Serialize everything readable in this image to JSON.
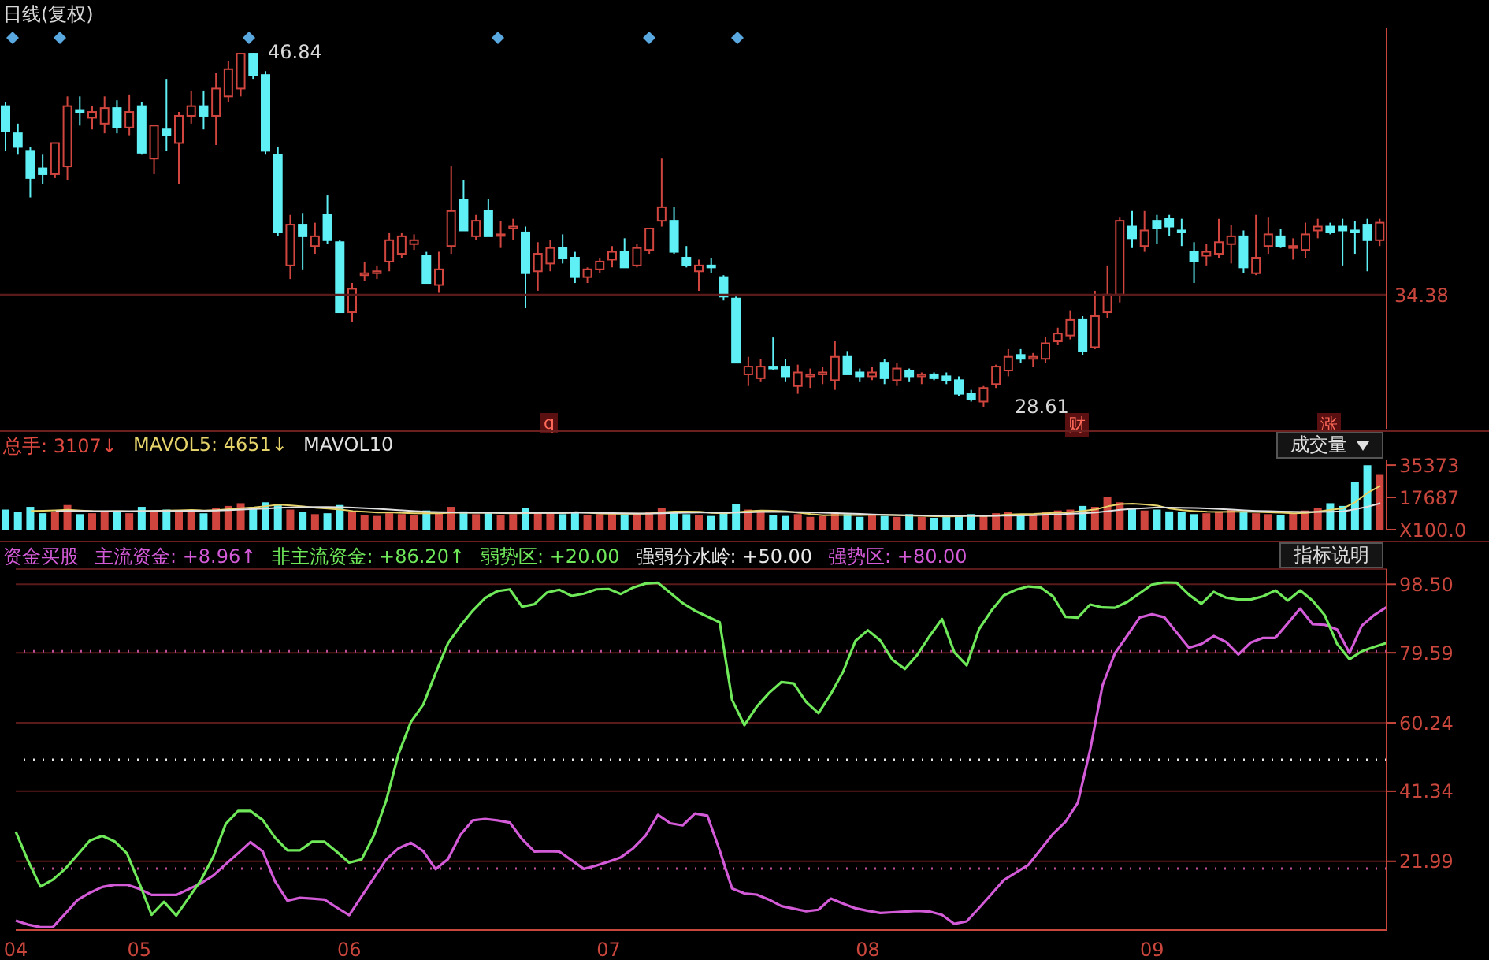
{
  "chart_data": [
    {
      "type": "candlestick",
      "title": "日线(复权)",
      "categories": [
        null,
        null,
        null,
        null,
        null,
        null,
        null,
        null,
        null,
        null,
        null,
        null,
        null,
        null,
        null,
        null,
        null,
        null,
        null,
        null,
        null,
        null,
        null,
        null,
        null,
        null,
        null,
        null,
        null,
        null,
        null,
        null,
        null,
        null,
        null,
        null,
        null,
        null,
        null,
        null,
        null,
        null,
        null,
        null,
        null,
        null,
        null,
        null,
        null,
        null,
        null,
        null,
        null,
        null,
        null,
        null,
        null,
        null,
        null,
        null,
        null,
        null,
        null,
        null,
        null,
        null,
        null,
        null,
        null,
        null,
        null,
        null,
        null,
        null,
        null,
        null,
        null,
        null,
        null,
        null,
        null,
        null,
        null,
        null,
        null,
        null,
        null,
        null,
        null,
        null,
        null,
        null,
        null,
        null,
        null,
        null,
        null,
        null,
        null,
        null,
        null,
        null,
        null,
        null,
        null,
        null,
        null,
        null,
        null,
        null,
        null,
        null
      ],
      "ohlc": [
        [
          44.1,
          44.3,
          41.8,
          42.8
        ],
        [
          42.7,
          43.2,
          41.6,
          42.0
        ],
        [
          41.8,
          42.0,
          39.4,
          40.4
        ],
        [
          40.9,
          41.6,
          40.1,
          40.6
        ],
        [
          40.6,
          42.2,
          40.4,
          42.2
        ],
        [
          41.0,
          44.6,
          40.3,
          44.1
        ],
        [
          43.9,
          44.6,
          43.1,
          43.8
        ],
        [
          43.5,
          44.1,
          42.9,
          43.8
        ],
        [
          43.2,
          44.6,
          42.7,
          44.0
        ],
        [
          44.0,
          44.4,
          42.7,
          43.0
        ],
        [
          43.0,
          44.7,
          42.6,
          43.8
        ],
        [
          44.1,
          44.3,
          41.6,
          41.7
        ],
        [
          41.4,
          43.1,
          40.6,
          43.1
        ],
        [
          42.9,
          45.5,
          41.8,
          42.6
        ],
        [
          42.2,
          43.8,
          40.1,
          43.6
        ],
        [
          43.6,
          44.9,
          43.2,
          44.1
        ],
        [
          44.1,
          44.9,
          42.9,
          43.6
        ],
        [
          43.6,
          45.8,
          42.1,
          45.0
        ],
        [
          44.6,
          46.4,
          44.3,
          46.0
        ],
        [
          45.0,
          46.8,
          44.6,
          46.8
        ],
        [
          46.8,
          46.84,
          45.5,
          45.7
        ],
        [
          45.7,
          45.9,
          41.6,
          41.8
        ],
        [
          41.6,
          42.0,
          37.4,
          37.6
        ],
        [
          35.9,
          38.5,
          35.2,
          38.0
        ],
        [
          38.0,
          38.6,
          35.7,
          37.4
        ],
        [
          36.9,
          38.1,
          36.5,
          37.4
        ],
        [
          38.5,
          39.5,
          37.0,
          37.2
        ],
        [
          37.1,
          37.2,
          33.5,
          33.5
        ],
        [
          33.5,
          35.0,
          33.0,
          34.7
        ],
        [
          35.4,
          36.1,
          35.1,
          35.5
        ],
        [
          35.5,
          35.9,
          35.2,
          35.6
        ],
        [
          36.1,
          37.6,
          35.6,
          37.2
        ],
        [
          36.5,
          37.6,
          36.3,
          37.4
        ],
        [
          37.0,
          37.5,
          36.7,
          37.2
        ],
        [
          36.4,
          36.6,
          35.0,
          35.0
        ],
        [
          34.9,
          36.6,
          34.5,
          35.7
        ],
        [
          36.9,
          41.0,
          36.5,
          38.7
        ],
        [
          39.3,
          40.3,
          37.7,
          37.7
        ],
        [
          37.4,
          38.5,
          37.2,
          38.2
        ],
        [
          38.7,
          39.3,
          37.4,
          37.4
        ],
        [
          37.5,
          38.2,
          36.8,
          37.5
        ],
        [
          37.8,
          38.3,
          37.2,
          37.9
        ],
        [
          37.6,
          37.9,
          33.7,
          35.5
        ],
        [
          35.6,
          37.1,
          34.6,
          36.5
        ],
        [
          36.0,
          37.2,
          35.6,
          36.8
        ],
        [
          36.8,
          37.5,
          36.0,
          36.3
        ],
        [
          36.3,
          36.6,
          35.0,
          35.3
        ],
        [
          35.3,
          35.8,
          35.0,
          35.7
        ],
        [
          35.7,
          36.3,
          35.5,
          36.1
        ],
        [
          36.2,
          36.9,
          35.8,
          36.6
        ],
        [
          36.6,
          37.3,
          35.8,
          35.8
        ],
        [
          35.9,
          37.0,
          35.8,
          36.8
        ],
        [
          36.7,
          37.8,
          36.5,
          37.8
        ],
        [
          38.2,
          41.4,
          37.9,
          38.9
        ],
        [
          38.2,
          38.9,
          36.5,
          36.6
        ],
        [
          36.3,
          36.9,
          35.8,
          35.9
        ],
        [
          35.6,
          36.2,
          34.6,
          35.9
        ],
        [
          35.9,
          36.3,
          35.5,
          35.8
        ],
        [
          35.3,
          35.4,
          34.1,
          34.3
        ],
        [
          34.2,
          34.3,
          30.9,
          30.9
        ],
        [
          30.3,
          31.2,
          29.7,
          30.7
        ],
        [
          30.1,
          31.1,
          29.9,
          30.7
        ],
        [
          30.7,
          32.2,
          30.5,
          30.6
        ],
        [
          30.7,
          31.1,
          29.9,
          30.2
        ],
        [
          29.7,
          30.8,
          29.3,
          30.4
        ],
        [
          30.2,
          30.6,
          29.6,
          30.3
        ],
        [
          30.3,
          30.7,
          29.8,
          30.4
        ],
        [
          30.0,
          32.0,
          29.5,
          31.2
        ],
        [
          31.2,
          31.5,
          30.3,
          30.3
        ],
        [
          30.4,
          30.6,
          29.9,
          30.2
        ],
        [
          30.2,
          30.7,
          30.0,
          30.4
        ],
        [
          30.9,
          31.1,
          29.8,
          30.1
        ],
        [
          30.0,
          30.9,
          29.7,
          30.6
        ],
        [
          30.5,
          30.6,
          29.9,
          30.2
        ],
        [
          30.2,
          30.4,
          29.8,
          30.3
        ],
        [
          30.3,
          30.4,
          30.0,
          30.1
        ],
        [
          30.2,
          30.4,
          29.8,
          30.0
        ],
        [
          30.0,
          30.2,
          29.2,
          29.3
        ],
        [
          29.3,
          29.5,
          28.9,
          29.0
        ],
        [
          28.9,
          29.7,
          28.61,
          29.6
        ],
        [
          29.8,
          30.8,
          29.6,
          30.7
        ],
        [
          30.5,
          31.6,
          30.2,
          31.2
        ],
        [
          31.3,
          31.6,
          30.9,
          31.1
        ],
        [
          31.1,
          31.4,
          30.7,
          31.2
        ],
        [
          31.1,
          32.2,
          30.9,
          31.9
        ],
        [
          32.0,
          32.7,
          31.8,
          32.4
        ],
        [
          32.3,
          33.6,
          32.1,
          33.1
        ],
        [
          33.1,
          33.3,
          31.3,
          31.5
        ],
        [
          31.7,
          34.6,
          31.6,
          33.3
        ],
        [
          33.5,
          35.9,
          33.2,
          34.4
        ],
        [
          34.4,
          38.4,
          34.0,
          38.2
        ],
        [
          37.9,
          38.7,
          36.8,
          37.3
        ],
        [
          36.9,
          38.7,
          36.6,
          37.7
        ],
        [
          38.2,
          38.5,
          37.0,
          37.8
        ],
        [
          38.3,
          38.5,
          37.4,
          37.9
        ],
        [
          37.7,
          38.3,
          36.9,
          37.6
        ],
        [
          36.6,
          37.1,
          35.0,
          36.1
        ],
        [
          36.4,
          37.0,
          35.9,
          36.6
        ],
        [
          36.5,
          38.3,
          36.3,
          37.1
        ],
        [
          37.0,
          38.0,
          36.0,
          37.4
        ],
        [
          37.4,
          37.7,
          35.5,
          35.8
        ],
        [
          35.5,
          38.5,
          35.4,
          36.3
        ],
        [
          36.9,
          38.4,
          36.5,
          37.5
        ],
        [
          37.4,
          37.8,
          36.8,
          36.9
        ],
        [
          36.8,
          37.3,
          36.2,
          36.9
        ],
        [
          36.7,
          38.1,
          36.3,
          37.5
        ],
        [
          37.7,
          38.3,
          37.3,
          37.9
        ],
        [
          37.9,
          38.1,
          37.5,
          37.6
        ],
        [
          37.9,
          38.3,
          35.9,
          37.7
        ],
        [
          37.7,
          38.2,
          36.5,
          37.6
        ],
        [
          38.0,
          38.3,
          35.6,
          37.2
        ],
        [
          37.2,
          38.3,
          36.9,
          38.1
        ]
      ],
      "colors": [
        "#5ff0f5",
        "#5ff0f5",
        "#5ff0f5",
        "#5ff0f5",
        "#d0453e",
        "#d0453e",
        "#5ff0f5",
        "#d0453e",
        "#d0453e",
        "#5ff0f5",
        "#d0453e",
        "#5ff0f5",
        "#d0453e",
        "#5ff0f5",
        "#d0453e",
        "#d0453e",
        "#5ff0f5",
        "#d0453e",
        "#d0453e",
        "#d0453e",
        "#5ff0f5",
        "#5ff0f5",
        "#5ff0f5",
        "#d0453e",
        "#5ff0f5",
        "#d0453e",
        "#5ff0f5",
        "#5ff0f5",
        "#d0453e",
        "#d0453e",
        "#d0453e",
        "#d0453e",
        "#d0453e",
        "#d0453e",
        "#5ff0f5",
        "#d0453e",
        "#d0453e",
        "#5ff0f5",
        "#d0453e",
        "#5ff0f5",
        "#d0453e",
        "#d0453e",
        "#5ff0f5",
        "#d0453e",
        "#d0453e",
        "#5ff0f5",
        "#5ff0f5",
        "#d0453e",
        "#d0453e",
        "#d0453e",
        "#5ff0f5",
        "#d0453e",
        "#d0453e",
        "#d0453e",
        "#5ff0f5",
        "#5ff0f5",
        "#d0453e",
        "#5ff0f5",
        "#5ff0f5",
        "#5ff0f5",
        "#d0453e",
        "#d0453e",
        "#5ff0f5",
        "#5ff0f5",
        "#d0453e",
        "#d0453e",
        "#d0453e",
        "#d0453e",
        "#5ff0f5",
        "#5ff0f5",
        "#d0453e",
        "#5ff0f5",
        "#d0453e",
        "#5ff0f5",
        "#d0453e",
        "#5ff0f5",
        "#5ff0f5",
        "#5ff0f5",
        "#5ff0f5",
        "#d0453e",
        "#d0453e",
        "#d0453e",
        "#5ff0f5",
        "#d0453e",
        "#d0453e",
        "#d0453e",
        "#d0453e",
        "#5ff0f5",
        "#d0453e",
        "#d0453e",
        "#d0453e",
        "#5ff0f5",
        "#d0453e",
        "#5ff0f5",
        "#5ff0f5",
        "#5ff0f5",
        "#5ff0f5",
        "#d0453e",
        "#d0453e",
        "#d0453e",
        "#5ff0f5",
        "#d0453e",
        "#d0453e",
        "#5ff0f5",
        "#d0453e",
        "#d0453e",
        "#d0453e",
        "#5ff0f5",
        "#5ff0f5",
        "#5ff0f5",
        "#5ff0f5",
        "#d0453e"
      ],
      "ylim": [
        27.5,
        48.1
      ],
      "ref_lines": [
        {
          "axis": "y",
          "value": 34.38,
          "label": "34.38",
          "color": "#5a1a1a"
        }
      ],
      "annotations": [
        "46.84",
        "28.61",
        "q",
        "财",
        "涨"
      ]
    },
    {
      "type": "bar",
      "categories": [
        null,
        null,
        null,
        null,
        null,
        null,
        null,
        null,
        null,
        null,
        null,
        null,
        null,
        null,
        null,
        null,
        null,
        null,
        null,
        null,
        null,
        null,
        null,
        null,
        null,
        null,
        null,
        null,
        null,
        null,
        null,
        null,
        null,
        null,
        null,
        null,
        null,
        null,
        null,
        null,
        null,
        null,
        null,
        null,
        null,
        null,
        null,
        null,
        null,
        null,
        null,
        null,
        null,
        null,
        null,
        null,
        null,
        null,
        null,
        null,
        null,
        null,
        null,
        null,
        null,
        null,
        null,
        null,
        null,
        null,
        null,
        null,
        null,
        null,
        null,
        null,
        null,
        null,
        null,
        null,
        null,
        null,
        null,
        null,
        null,
        null,
        null,
        null,
        null,
        null,
        null,
        null,
        null,
        null,
        null,
        null,
        null,
        null,
        null,
        null,
        null,
        null,
        null,
        null,
        null,
        null,
        null,
        null,
        null,
        null,
        null,
        null
      ],
      "series": [
        {
          "type": "bar",
          "values": [
            11000,
            9500,
            12500,
            9000,
            10000,
            13500,
            8500,
            9000,
            9500,
            10000,
            9000,
            12500,
            10500,
            11000,
            9500,
            10000,
            9000,
            12000,
            13000,
            14500,
            12000,
            15000,
            14000,
            11000,
            9500,
            8500,
            9000,
            13500,
            10000,
            8000,
            7500,
            9000,
            8500,
            8000,
            10500,
            9000,
            12500,
            10000,
            8500,
            9500,
            8000,
            8500,
            12000,
            9500,
            9000,
            8500,
            9500,
            8000,
            8500,
            9000,
            8500,
            9000,
            9500,
            12000,
            10000,
            8500,
            8000,
            7500,
            9500,
            14000,
            11000,
            9500,
            8000,
            7500,
            8500,
            7000,
            7500,
            9500,
            8500,
            7000,
            8000,
            7500,
            7000,
            8500,
            7000,
            6500,
            7000,
            7500,
            8500,
            7500,
            9000,
            9500,
            8500,
            8000,
            9500,
            10500,
            11000,
            13000,
            12500,
            18000,
            15000,
            12000,
            10500,
            11000,
            10000,
            9500,
            8500,
            9000,
            10000,
            11000,
            9500,
            9000,
            8500,
            8000,
            9000,
            10500,
            12000,
            14500,
            13000,
            26000,
            35300,
            30000
          ],
          "colors": [
            "#5ff0f5",
            "#5ff0f5",
            "#5ff0f5",
            "#5ff0f5",
            "#d0453e",
            "#d0453e",
            "#5ff0f5",
            "#d0453e",
            "#d0453e",
            "#5ff0f5",
            "#d0453e",
            "#5ff0f5",
            "#d0453e",
            "#5ff0f5",
            "#d0453e",
            "#d0453e",
            "#5ff0f5",
            "#d0453e",
            "#d0453e",
            "#d0453e",
            "#5ff0f5",
            "#5ff0f5",
            "#5ff0f5",
            "#d0453e",
            "#5ff0f5",
            "#d0453e",
            "#5ff0f5",
            "#5ff0f5",
            "#d0453e",
            "#d0453e",
            "#d0453e",
            "#d0453e",
            "#d0453e",
            "#d0453e",
            "#5ff0f5",
            "#d0453e",
            "#d0453e",
            "#5ff0f5",
            "#d0453e",
            "#5ff0f5",
            "#d0453e",
            "#d0453e",
            "#5ff0f5",
            "#d0453e",
            "#d0453e",
            "#5ff0f5",
            "#5ff0f5",
            "#d0453e",
            "#d0453e",
            "#d0453e",
            "#5ff0f5",
            "#d0453e",
            "#d0453e",
            "#d0453e",
            "#5ff0f5",
            "#5ff0f5",
            "#d0453e",
            "#5ff0f5",
            "#5ff0f5",
            "#5ff0f5",
            "#d0453e",
            "#d0453e",
            "#5ff0f5",
            "#5ff0f5",
            "#d0453e",
            "#d0453e",
            "#d0453e",
            "#d0453e",
            "#5ff0f5",
            "#5ff0f5",
            "#d0453e",
            "#5ff0f5",
            "#d0453e",
            "#5ff0f5",
            "#d0453e",
            "#5ff0f5",
            "#5ff0f5",
            "#5ff0f5",
            "#5ff0f5",
            "#d0453e",
            "#d0453e",
            "#d0453e",
            "#5ff0f5",
            "#d0453e",
            "#d0453e",
            "#d0453e",
            "#d0453e",
            "#5ff0f5",
            "#d0453e",
            "#d0453e",
            "#d0453e",
            "#5ff0f5",
            "#d0453e",
            "#5ff0f5",
            "#5ff0f5",
            "#5ff0f5",
            "#5ff0f5",
            "#d0453e",
            "#d0453e",
            "#d0453e",
            "#5ff0f5",
            "#d0453e",
            "#d0453e",
            "#5ff0f5",
            "#d0453e",
            "#d0453e",
            "#d0453e",
            "#5ff0f5",
            "#5ff0f5",
            "#5ff0f5",
            "#5ff0f5",
            "#d0453e"
          ]
        },
        {
          "type": "line",
          "color": "#e6d36a",
          "values": [
            null,
            null,
            10300,
            10400,
            10600,
            10900,
            10500,
            10100,
            10000,
            10100,
            9900,
            10100,
            10300,
            10500,
            10600,
            10800,
            10500,
            10700,
            11200,
            11800,
            12200,
            12900,
            13700,
            13300,
            12700,
            12000,
            11500,
            11000,
            10200,
            9800,
            9400,
            9500,
            9200,
            9000,
            9100,
            9000,
            9300,
            9400,
            9300,
            9400,
            9100,
            9000,
            9100,
            9300,
            9200,
            9100,
            9600,
            9300,
            8900,
            8700,
            8700,
            8700,
            8900,
            9500,
            9900,
            9900,
            9800,
            9200,
            9000,
            9500,
            10200,
            10500,
            10400,
            10000,
            9300,
            8500,
            7900,
            8000,
            8000,
            8000,
            8100,
            8100,
            7900,
            7700,
            7600,
            7300,
            7200,
            7300,
            7700,
            7400,
            7800,
            8300,
            8500,
            8600,
            9000,
            9300,
            9600,
            10300,
            11100,
            12800,
            14000,
            14200,
            13800,
            13200,
            11500,
            10700,
            10200,
            9800,
            9700,
            9800,
            9800,
            9700,
            9500,
            9300,
            9000,
            9200,
            9900,
            10900,
            11700,
            15200,
            20300,
            24000
          ]
        },
        {
          "type": "line",
          "color": "#e0e0e0",
          "values": [
            null,
            null,
            null,
            null,
            10200,
            10300,
            10300,
            10200,
            10200,
            10200,
            10100,
            10200,
            10300,
            10300,
            10300,
            10400,
            10400,
            10500,
            10700,
            11000,
            11300,
            11600,
            12000,
            12200,
            12300,
            12400,
            12400,
            12300,
            12100,
            11800,
            11400,
            11000,
            10600,
            10200,
            9800,
            9600,
            9500,
            9400,
            9300,
            9300,
            9200,
            9200,
            9200,
            9200,
            9200,
            9200,
            9300,
            9300,
            9200,
            9100,
            9000,
            8900,
            8900,
            9000,
            9200,
            9300,
            9400,
            9400,
            9300,
            9400,
            9500,
            9700,
            9800,
            9700,
            9600,
            9500,
            9300,
            9100,
            8900,
            8600,
            8300,
            8100,
            8000,
            7900,
            7800,
            7700,
            7700,
            7600,
            7600,
            7600,
            7600,
            7700,
            7800,
            7900,
            8200,
            8400,
            8700,
            9000,
            9400,
            10100,
            10900,
            11400,
            11800,
            12200,
            12100,
            12000,
            11900,
            11700,
            11300,
            11000,
            10600,
            10300,
            10100,
            9900,
            9800,
            9700,
            9700,
            9800,
            10000,
            11200,
            12600,
            14500
          ]
        }
      ],
      "ylim": [
        0,
        38000
      ],
      "yticks": [
        {
          "value": 0,
          "label": "X100.0"
        },
        17687,
        35373
      ],
      "tick_labels": "y",
      "annotations": [
        "总手: 3107↓",
        "MAVOL5: 4651↓",
        "MAVOL10",
        "成交量"
      ]
    },
    {
      "type": "line",
      "categories": [
        "04",
        null,
        null,
        null,
        null,
        null,
        null,
        null,
        null,
        null,
        "05",
        null,
        null,
        null,
        null,
        null,
        null,
        null,
        null,
        null,
        null,
        null,
        null,
        null,
        null,
        null,
        null,
        "06",
        null,
        null,
        null,
        null,
        null,
        null,
        null,
        null,
        null,
        null,
        null,
        null,
        null,
        null,
        null,
        null,
        null,
        null,
        null,
        null,
        "07",
        null,
        null,
        null,
        null,
        null,
        null,
        null,
        null,
        null,
        null,
        null,
        null,
        null,
        null,
        null,
        null,
        null,
        null,
        null,
        null,
        "08",
        null,
        null,
        null,
        null,
        null,
        null,
        null,
        null,
        null,
        null,
        null,
        null,
        null,
        null,
        null,
        null,
        null,
        null,
        null,
        null,
        null,
        null,
        "09",
        null,
        null,
        null,
        null,
        null,
        null,
        null,
        null,
        null,
        null,
        null,
        null,
        null,
        null,
        null,
        null,
        null,
        null,
        null
      ],
      "series": [
        {
          "color": "#d45bd8",
          "values": [
            5.6,
            4.5,
            3.8,
            3.8,
            7.5,
            11.3,
            13.3,
            14.9,
            15.5,
            15.5,
            14.4,
            12.7,
            12.7,
            12.7,
            14.3,
            15.9,
            18.1,
            21.2,
            24.2,
            27.3,
            24.7,
            16.4,
            11.1,
            11.9,
            11.7,
            11.4,
            9.2,
            7.1,
            12.3,
            17.4,
            22.5,
            25.6,
            27.1,
            24.8,
            19.8,
            22.6,
            29.3,
            33.3,
            33.7,
            33.3,
            32.7,
            28.1,
            24.7,
            24.8,
            24.7,
            22.3,
            19.9,
            20.8,
            21.9,
            23.1,
            25.6,
            29.1,
            34.8,
            32.5,
            31.9,
            35.2,
            34.6,
            25.0,
            14.5,
            13.1,
            12.8,
            11.4,
            9.6,
            8.9,
            8.2,
            8.6,
            11.7,
            10.3,
            9.0,
            8.3,
            7.7,
            7.9,
            8.1,
            8.3,
            8.1,
            7.2,
            4.7,
            5.4,
            9.1,
            12.9,
            16.8,
            18.9,
            21.0,
            25.3,
            29.6,
            32.9,
            38.2,
            52.8,
            70.6,
            79.4,
            84.3,
            89.3,
            90.2,
            89.4,
            85.2,
            81.0,
            82.0,
            84.2,
            82.6,
            79.1,
            82.4,
            83.7,
            83.7,
            87.7,
            91.8,
            87.5,
            87.3,
            86.0,
            79.5,
            87.1,
            90.0,
            92.2
          ]
        },
        {
          "color": "#6fe85a",
          "values": [
            30.2,
            22.1,
            15.0,
            16.9,
            19.9,
            23.8,
            27.7,
            29.0,
            27.5,
            24.2,
            16.0,
            7.2,
            10.8,
            7.0,
            11.9,
            16.8,
            23.3,
            32.3,
            35.9,
            35.9,
            33.4,
            28.5,
            25.0,
            25.0,
            27.4,
            27.4,
            24.6,
            21.6,
            22.5,
            29.1,
            38.8,
            51.7,
            60.5,
            65.3,
            74.0,
            82.2,
            87.0,
            91.2,
            94.7,
            96.6,
            97.1,
            92.3,
            93.0,
            96.2,
            97.0,
            95.3,
            95.9,
            97.1,
            97.2,
            95.8,
            97.6,
            98.7,
            98.9,
            96.1,
            93.3,
            91.2,
            89.6,
            88.0,
            66.6,
            59.6,
            64.7,
            68.5,
            71.5,
            71.1,
            66.0,
            62.9,
            68.2,
            74.4,
            82.9,
            85.8,
            83.0,
            77.6,
            75.1,
            79.0,
            84.2,
            88.9,
            79.7,
            76.1,
            86.1,
            91.2,
            95.4,
            97.0,
            97.9,
            97.6,
            95.1,
            89.5,
            89.3,
            92.9,
            92.1,
            92.0,
            93.6,
            96.0,
            98.4,
            99.0,
            98.9,
            95.6,
            93.1,
            96.4,
            94.8,
            94.3,
            94.3,
            95.2,
            96.8,
            94.0,
            96.8,
            94.0,
            89.9,
            82.0,
            77.8,
            80.0,
            81.2,
            82.3
          ]
        }
      ],
      "ylim": [
        3,
        102.7
      ],
      "yticks": [
        21.99,
        41.34,
        60.24,
        79.59,
        {
          "value": 98.5,
          "label": "98.50"
        }
      ],
      "grid": "y",
      "ref_lines": [
        {
          "axis": "y",
          "value": 80,
          "color": "#c0509a",
          "line_style": "dotted"
        },
        {
          "axis": "y",
          "value": 50,
          "color": "#e8e8e8",
          "line_style": "dotted"
        },
        {
          "axis": "y",
          "value": 20,
          "color": "#c0509a",
          "line_style": "dotted"
        }
      ],
      "annotations": [
        "资金买股",
        "主流资金: +8.96↑",
        "非主流资金: +86.20↑",
        "弱势区: +20.00",
        "强弱分水岭: +50.00",
        "强势区: +80.00",
        "指标说明"
      ]
    }
  ]
}
